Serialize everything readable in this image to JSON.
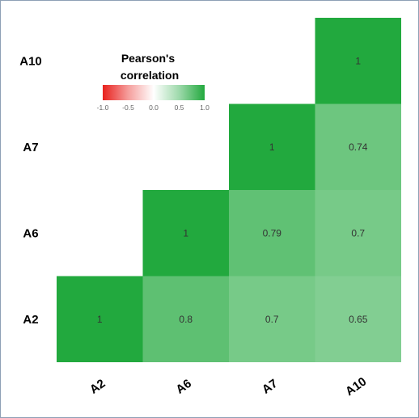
{
  "chart_data": {
    "type": "heatmap",
    "title": "",
    "x_categories": [
      "A2",
      "A6",
      "A7",
      "A10"
    ],
    "y_categories": [
      "A2",
      "A6",
      "A7",
      "A10"
    ],
    "cells": [
      {
        "x": "A2",
        "y": "A2",
        "value": 1,
        "label": "1"
      },
      {
        "x": "A6",
        "y": "A2",
        "value": 0.8,
        "label": "0.8"
      },
      {
        "x": "A7",
        "y": "A2",
        "value": 0.7,
        "label": "0.7"
      },
      {
        "x": "A10",
        "y": "A2",
        "value": 0.65,
        "label": "0.65"
      },
      {
        "x": "A6",
        "y": "A6",
        "value": 1,
        "label": "1"
      },
      {
        "x": "A7",
        "y": "A6",
        "value": 0.79,
        "label": "0.79"
      },
      {
        "x": "A10",
        "y": "A6",
        "value": 0.7,
        "label": "0.7"
      },
      {
        "x": "A7",
        "y": "A7",
        "value": 1,
        "label": "1"
      },
      {
        "x": "A10",
        "y": "A7",
        "value": 0.74,
        "label": "0.74"
      },
      {
        "x": "A10",
        "y": "A10",
        "value": 1,
        "label": "1"
      }
    ],
    "legend": {
      "title_lines": [
        "Pearson's",
        "correlation"
      ],
      "ticks": [
        "-1.0",
        "-0.5",
        "0.0",
        "0.5",
        "1.0"
      ],
      "tick_values": [
        -1,
        -0.5,
        0,
        0.5,
        1
      ],
      "range": [
        -1,
        1
      ],
      "placement": "top-left"
    },
    "colors": {
      "negative": "#e8211d",
      "neutral": "#ffffff",
      "positive": "#22a93e"
    },
    "grid": false
  }
}
